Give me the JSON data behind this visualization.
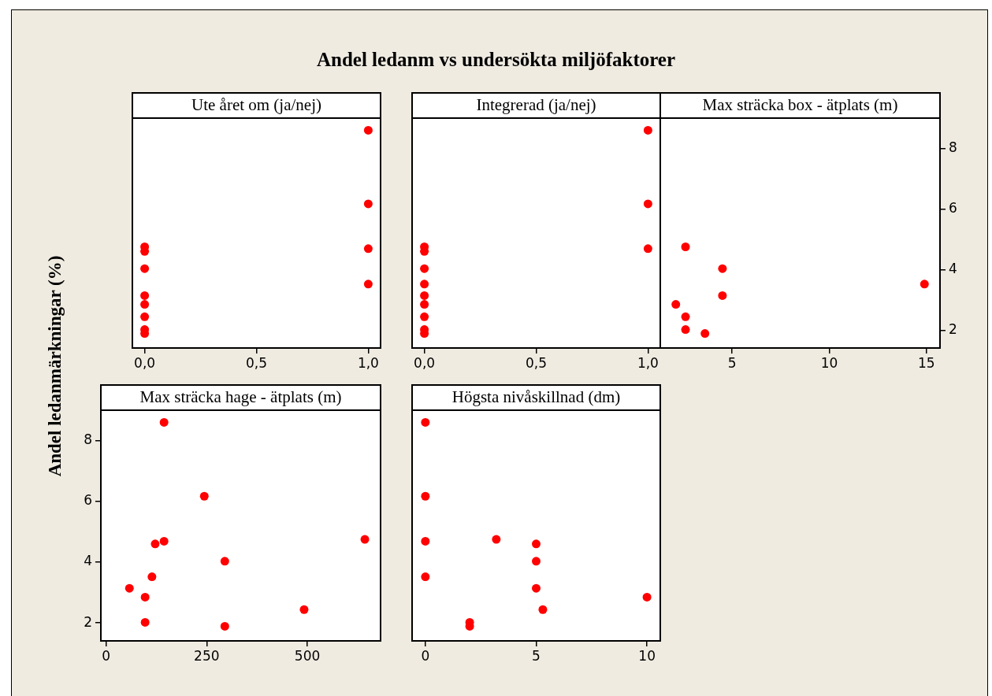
{
  "chart_data": [
    {
      "type": "scatter",
      "title": "Andel ledanm vs undersökta miljöfaktorer",
      "ylabel": "Andel ledanmärkningar (%)",
      "xlabel": "Ute året om (ja/nej)",
      "xlim": [
        -0.055,
        1.055
      ],
      "xticks": [
        {
          "value": 0,
          "label": "0,0"
        },
        {
          "value": 0.5,
          "label": "0,5"
        },
        {
          "value": 1,
          "label": "1,0"
        }
      ],
      "ylim": [
        1.41,
        9.0
      ],
      "yticks": [
        2,
        4,
        6,
        8
      ],
      "tick_labels": "x",
      "marker": "circle",
      "series": [
        {
          "color": "#ff0000",
          "x": [
            0,
            0,
            0,
            0,
            0,
            0,
            0,
            0,
            1,
            1,
            1,
            1
          ],
          "values": [
            4.75,
            4.6,
            4.03,
            3.14,
            2.85,
            2.44,
            2.02,
            1.89,
            8.6,
            6.17,
            4.69,
            3.52
          ]
        }
      ]
    },
    {
      "type": "scatter",
      "xlabel": "Integrerad (ja/nej)",
      "xlim": [
        -0.055,
        1.055
      ],
      "xticks": [
        {
          "value": 0,
          "label": "0,0"
        },
        {
          "value": 0.5,
          "label": "0,5"
        },
        {
          "value": 1,
          "label": "1,0"
        }
      ],
      "ylim": [
        1.41,
        9.0
      ],
      "yticks": [
        2,
        4,
        6,
        8
      ],
      "tick_labels": "x",
      "marker": "circle",
      "series": [
        {
          "color": "#ff0000",
          "x": [
            0,
            0,
            0,
            0,
            0,
            0,
            0,
            0,
            0,
            1,
            1,
            1
          ],
          "values": [
            4.75,
            4.6,
            4.03,
            3.52,
            3.14,
            2.85,
            2.44,
            2.02,
            1.89,
            8.6,
            6.17,
            4.69
          ]
        }
      ]
    },
    {
      "type": "scatter",
      "xlabel": "Max sträcka box - ätplats (m)",
      "xlim": [
        1.3,
        15.7
      ],
      "xticks": [
        5,
        10,
        15
      ],
      "ylim": [
        1.41,
        9.0
      ],
      "yticks": [
        2,
        4,
        6,
        8
      ],
      "marker": "circle",
      "series": [
        {
          "color": "#ff0000",
          "x": [
            2.6,
            4.5,
            4.5,
            2.1,
            2.6,
            2.6,
            3.6,
            14.9
          ],
          "values": [
            4.75,
            4.03,
            3.14,
            2.85,
            2.44,
            2.02,
            1.89,
            3.52
          ]
        }
      ]
    },
    {
      "type": "scatter",
      "xlabel": "Max sträcka hage - ätplats (m)",
      "xlim": [
        -13,
        682
      ],
      "xticks": [
        0,
        250,
        500
      ],
      "ylim": [
        1.41,
        9.0
      ],
      "yticks": [
        2,
        4,
        6,
        8
      ],
      "marker": "circle",
      "series": [
        {
          "color": "#ff0000",
          "x": [
            144,
            244,
            122,
            144,
            643,
            295,
            114,
            58,
            97,
            492,
            97,
            295
          ],
          "values": [
            8.6,
            6.17,
            4.6,
            4.69,
            4.75,
            4.03,
            3.52,
            3.14,
            2.85,
            2.44,
            2.02,
            1.89
          ]
        }
      ]
    },
    {
      "type": "scatter",
      "xlabel": "Högsta nivåskillnad (dm)",
      "xlim": [
        -0.6,
        10.6
      ],
      "xticks": [
        0,
        5,
        10
      ],
      "ylim": [
        1.41,
        9.0
      ],
      "yticks": [
        2,
        4,
        6,
        8
      ],
      "tick_labels": "x",
      "marker": "circle",
      "series": [
        {
          "color": "#ff0000",
          "x": [
            0,
            0,
            0,
            0,
            3.2,
            5,
            5,
            5,
            5.3,
            10,
            2,
            2
          ],
          "values": [
            8.6,
            6.17,
            4.69,
            3.52,
            4.75,
            4.6,
            4.03,
            3.14,
            2.44,
            2.85,
            2.02,
            1.89
          ]
        }
      ]
    }
  ]
}
